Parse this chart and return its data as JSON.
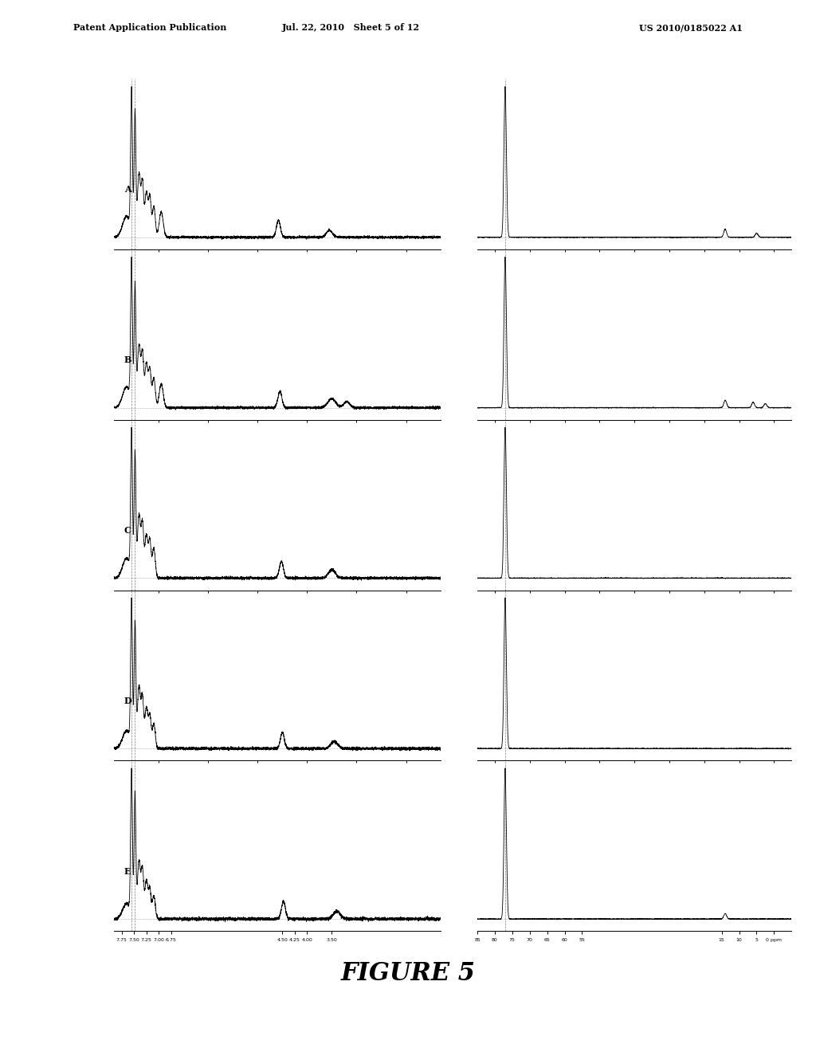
{
  "title": "FIGURE 5",
  "header_left": "Patent Application Publication",
  "header_center": "Jul. 22, 2010   Sheet 5 of 12",
  "header_right": "US 2010/0185022 A1",
  "background_color": "#ffffff",
  "spectra_labels": [
    "A",
    "B",
    "C",
    "D",
    "E"
  ],
  "left_xlim": [
    7.9,
    1.3
  ],
  "right_xlim": [
    85,
    -5
  ],
  "left_xticks": [
    7.75,
    7.5,
    7.25,
    7.0,
    6.75,
    4.5,
    4.25,
    4.0,
    3.5
  ],
  "left_xticklabels": [
    "7.75",
    "7.50",
    "7.25",
    "7.00",
    "6.75",
    "4.50",
    "4.25",
    "4.00",
    "3.50"
  ],
  "right_xticks": [
    85,
    80,
    75,
    70,
    65,
    60,
    55,
    15,
    10,
    5,
    0
  ],
  "right_xticklabels": [
    "85",
    "80",
    "75",
    "70",
    "65",
    "60",
    "55",
    "15",
    "10",
    "5",
    "0 ppm"
  ]
}
